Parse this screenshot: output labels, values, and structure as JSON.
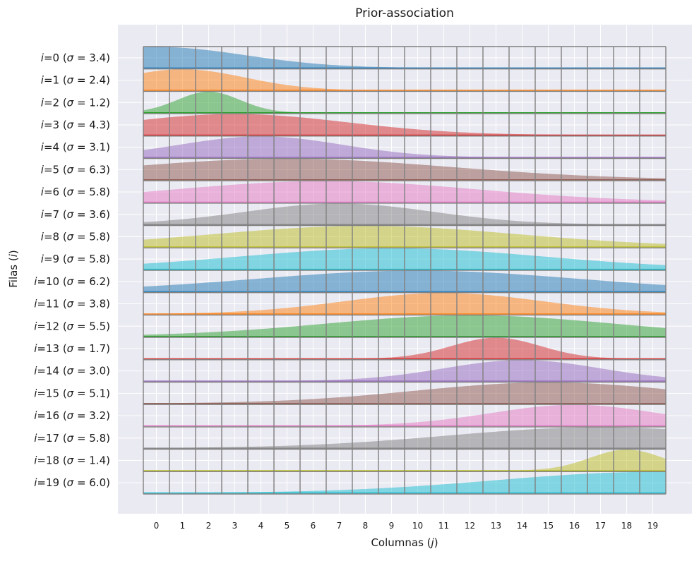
{
  "chart_data": {
    "type": "area",
    "title": "Prior-association",
    "xlabel": "Columnas (j)",
    "ylabel": "Filas (i)",
    "x_categories": [
      "0",
      "1",
      "2",
      "3",
      "4",
      "5",
      "6",
      "7",
      "8",
      "9",
      "10",
      "11",
      "12",
      "13",
      "14",
      "15",
      "16",
      "17",
      "18",
      "19"
    ],
    "row_labels": [
      "i=0 (σ = 3.4)",
      "i=1 (σ = 2.4)",
      "i=2 (σ = 1.2)",
      "i=3 (σ = 4.3)",
      "i=4 (σ = 3.1)",
      "i=5 (σ = 6.3)",
      "i=6 (σ = 5.8)",
      "i=7 (σ = 3.6)",
      "i=8 (σ = 5.8)",
      "i=9 (σ = 5.8)",
      "i=10 (σ = 6.2)",
      "i=11 (σ = 3.8)",
      "i=12 (σ = 5.5)",
      "i=13 (σ = 1.7)",
      "i=14 (σ = 3.0)",
      "i=15 (σ = 5.1)",
      "i=16 (σ = 3.2)",
      "i=17 (σ = 5.8)",
      "i=18 (σ = 1.4)",
      "i=19 (σ = 6.0)"
    ],
    "series": [
      {
        "row": 0,
        "center": 0,
        "sigma": 3.4,
        "color": "#1f77b4"
      },
      {
        "row": 1,
        "center": 1,
        "sigma": 2.4,
        "color": "#ff7f0e"
      },
      {
        "row": 2,
        "center": 2,
        "sigma": 1.2,
        "color": "#2ca02c"
      },
      {
        "row": 3,
        "center": 3,
        "sigma": 4.3,
        "color": "#d62728"
      },
      {
        "row": 4,
        "center": 4,
        "sigma": 3.1,
        "color": "#9467bd"
      },
      {
        "row": 5,
        "center": 5,
        "sigma": 6.3,
        "color": "#8c564b"
      },
      {
        "row": 6,
        "center": 6.5,
        "sigma": 5.8,
        "color": "#e377c2"
      },
      {
        "row": 7,
        "center": 7,
        "sigma": 3.6,
        "color": "#7f7f7f"
      },
      {
        "row": 8,
        "center": 8,
        "sigma": 5.8,
        "color": "#bcbd22"
      },
      {
        "row": 9,
        "center": 9,
        "sigma": 5.8,
        "color": "#17becf"
      },
      {
        "row": 10,
        "center": 10,
        "sigma": 6.2,
        "color": "#1f77b4"
      },
      {
        "row": 11,
        "center": 11,
        "sigma": 3.8,
        "color": "#ff7f0e"
      },
      {
        "row": 12,
        "center": 12,
        "sigma": 5.5,
        "color": "#2ca02c"
      },
      {
        "row": 13,
        "center": 13,
        "sigma": 1.7,
        "color": "#d62728"
      },
      {
        "row": 14,
        "center": 14,
        "sigma": 3.0,
        "color": "#9467bd"
      },
      {
        "row": 15,
        "center": 15,
        "sigma": 5.1,
        "color": "#8c564b"
      },
      {
        "row": 16,
        "center": 16,
        "sigma": 3.2,
        "color": "#e377c2"
      },
      {
        "row": 17,
        "center": 17,
        "sigma": 5.8,
        "color": "#7f7f7f"
      },
      {
        "row": 18,
        "center": 18,
        "sigma": 1.4,
        "color": "#bcbd22"
      },
      {
        "row": 19,
        "center": 19,
        "sigma": 6.0,
        "color": "#17becf"
      }
    ],
    "grid": true,
    "background": "#eaeaf2",
    "cell_border_color": "#808080"
  }
}
